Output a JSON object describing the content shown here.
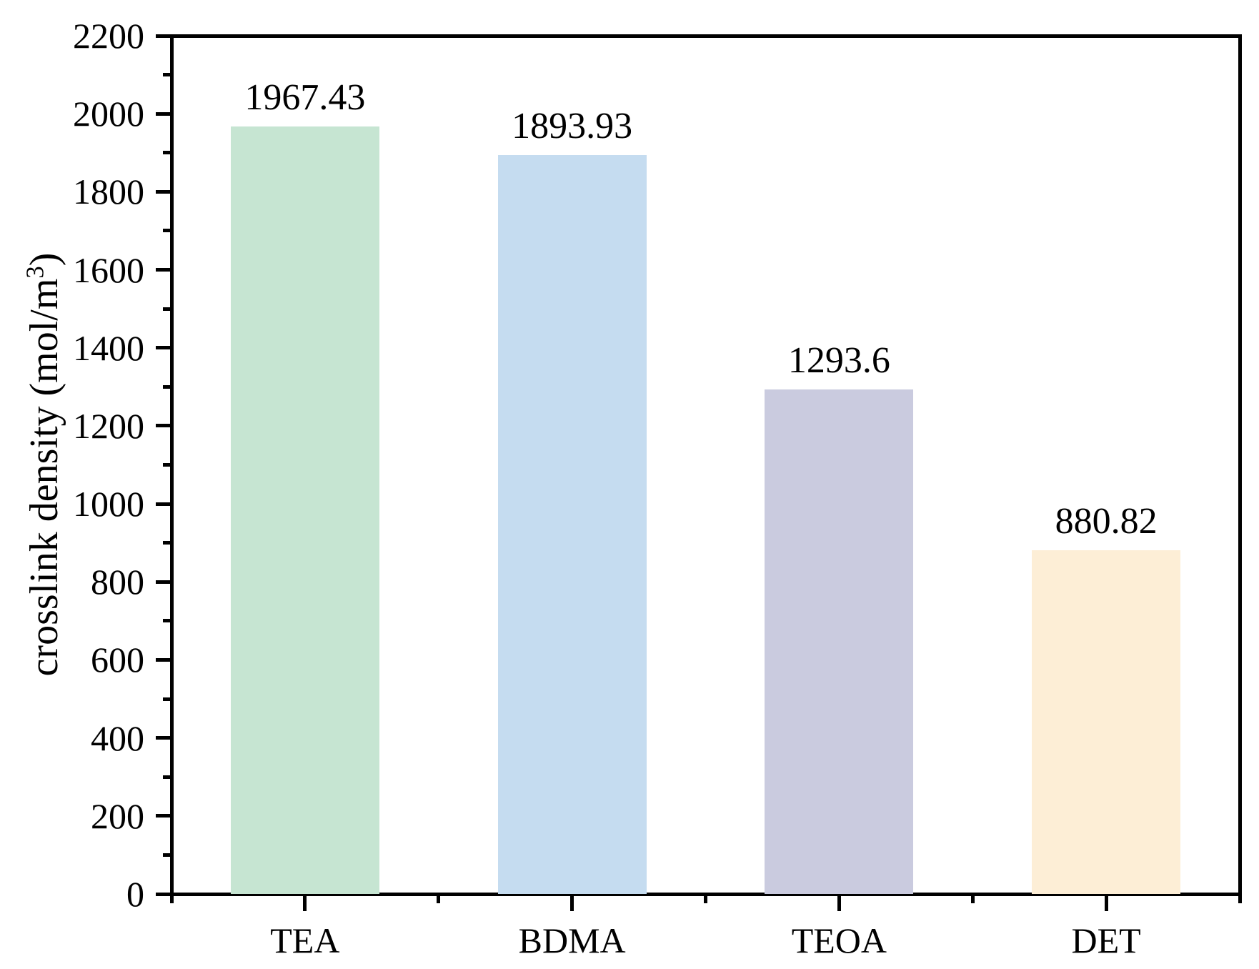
{
  "chart_data": {
    "type": "bar",
    "categories": [
      "TEA",
      "BDMA",
      "TEOA",
      "DET"
    ],
    "values": [
      1967.43,
      1893.93,
      1293.6,
      880.82
    ],
    "value_labels": [
      "1967.43",
      "1893.93",
      "1293.6",
      "880.82"
    ],
    "bar_colors": [
      "#c6e5d2",
      "#c5dcf0",
      "#cacbdf",
      "#fdeed6"
    ],
    "title": "",
    "xlabel": "",
    "ylabel": "crosslink density (mol/m³)",
    "ylabel_parts": {
      "prefix": "crosslink density (mol/m",
      "superscript": "3",
      "suffix": ")"
    },
    "ylim": [
      0,
      2200
    ],
    "y_major_step": 200,
    "y_minor_step": 100,
    "y_tick_labels": [
      "0",
      "200",
      "400",
      "600",
      "800",
      "1000",
      "1200",
      "1400",
      "1600",
      "1800",
      "2000",
      "2200"
    ],
    "grid": false,
    "legend_position": "none",
    "axis_color": "#000000",
    "text_color": "#000000",
    "background_color": "#ffffff"
  }
}
